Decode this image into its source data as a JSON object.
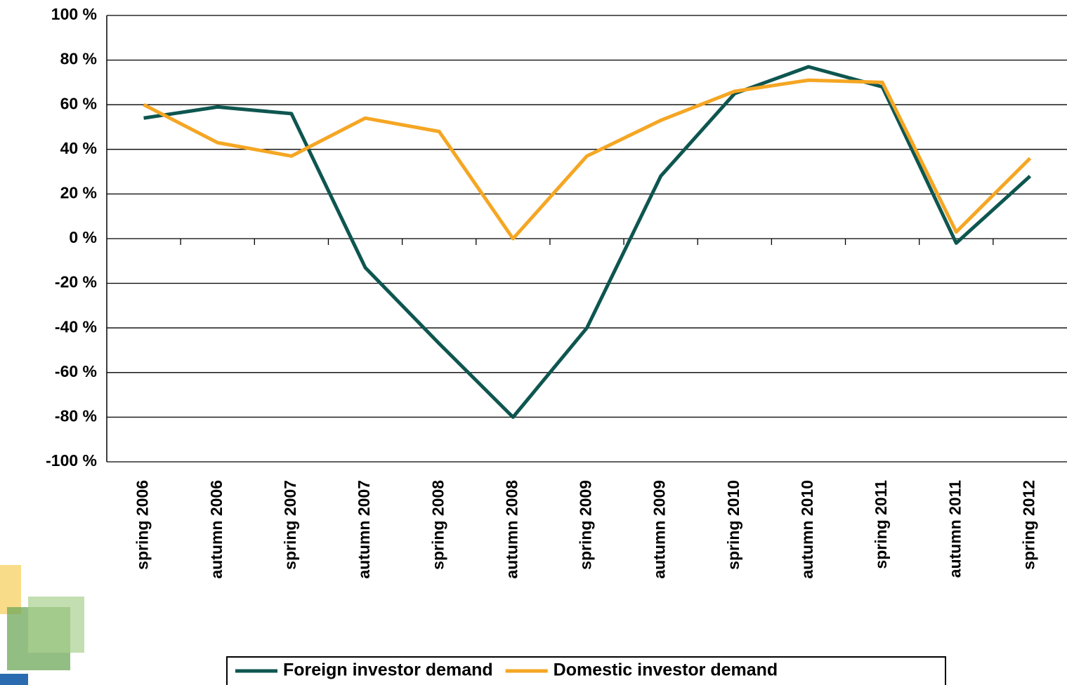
{
  "chart_data": {
    "type": "line",
    "categories": [
      "spring 2006",
      "autumn 2006",
      "spring 2007",
      "autumn 2007",
      "spring 2008",
      "autumn 2008",
      "spring 2009",
      "autumn 2009",
      "spring 2010",
      "autumn 2010",
      "spring 2011",
      "autumn 2011",
      "spring 2012"
    ],
    "series": [
      {
        "name": "Foreign investor demand",
        "color": "#0e5650",
        "values": [
          54,
          59,
          56,
          -13,
          -47,
          -80,
          -40,
          28,
          65,
          77,
          68,
          -2,
          28
        ]
      },
      {
        "name": "Domestic investor demand",
        "color": "#f5a623",
        "values": [
          60,
          43,
          37,
          54,
          48,
          0,
          37,
          53,
          66,
          71,
          70,
          3,
          36
        ]
      }
    ],
    "ylim": [
      -100,
      100
    ],
    "yticks": [
      {
        "value": -100,
        "label": "-100 %"
      },
      {
        "value": -80,
        "label": "-80 %"
      },
      {
        "value": -60,
        "label": "-60 %"
      },
      {
        "value": -40,
        "label": "-40 %"
      },
      {
        "value": -20,
        "label": "-20 %"
      },
      {
        "value": 0,
        "label": "0 %"
      },
      {
        "value": 20,
        "label": "20 %"
      },
      {
        "value": 40,
        "label": "40 %"
      },
      {
        "value": 60,
        "label": "60 %"
      },
      {
        "value": 80,
        "label": "80 %"
      },
      {
        "value": 100,
        "label": "100 %"
      }
    ],
    "grid": true,
    "legend": "bottom"
  }
}
